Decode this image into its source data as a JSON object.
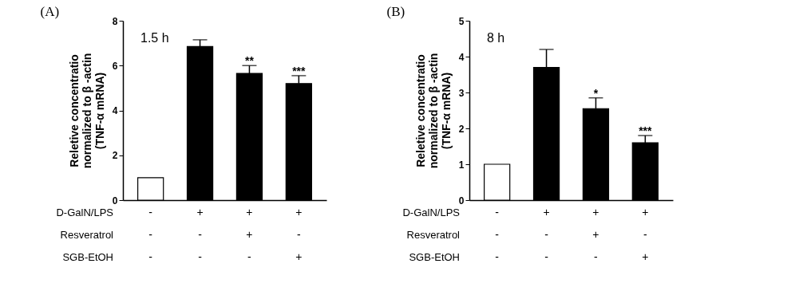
{
  "chart_data": [
    {
      "type": "bar",
      "title": "(A)",
      "ylabel": "Reletive concentratio\nnormalized to β -actin\n(TNF-α mRNA)",
      "categories": [
        "-\n-\n-",
        "+\n-\n-",
        "+\n+\n-",
        "+\n-\n+"
      ],
      "values": [
        1,
        6.85,
        5.65,
        5.2
      ],
      "errors": [
        null,
        0.3,
        0.35,
        0.35
      ],
      "colors": [
        "#ffffff",
        "#000000",
        "#000000",
        "#000000"
      ],
      "ylim": [
        0,
        8
      ],
      "yticks": [
        0,
        2,
        4,
        6,
        8
      ],
      "grid": false,
      "annotations": [
        "1.5 h",
        "D-GalN/LPS",
        "Resveratrol",
        "SGB-EtOH",
        {
          "text": "**",
          "x": "+\n+\n-",
          "y": 6.0
        },
        {
          "text": "***",
          "x": "+\n-\n+",
          "y": 5.55
        }
      ]
    },
    {
      "type": "bar",
      "title": "(B)",
      "ylabel": "Reletive concentratio\nnormalized to β -actin\n(TNF-α mRNA)",
      "categories": [
        "-\n-\n-",
        "+\n-\n-",
        "+\n+\n-",
        "+\n-\n+"
      ],
      "values": [
        1,
        3.7,
        2.55,
        1.6
      ],
      "errors": [
        null,
        0.5,
        0.3,
        0.2
      ],
      "colors": [
        "#ffffff",
        "#000000",
        "#000000",
        "#000000"
      ],
      "ylim": [
        0,
        5
      ],
      "yticks": [
        0,
        1,
        2,
        3,
        4,
        5
      ],
      "grid": false,
      "annotations": [
        "8 h",
        "D-GalN/LPS",
        "Resveratrol",
        "SGB-EtOH",
        {
          "text": "*",
          "x": "+\n+\n-",
          "y": 2.85
        },
        {
          "text": "***",
          "x": "+\n-\n+",
          "y": 1.8
        }
      ]
    }
  ]
}
